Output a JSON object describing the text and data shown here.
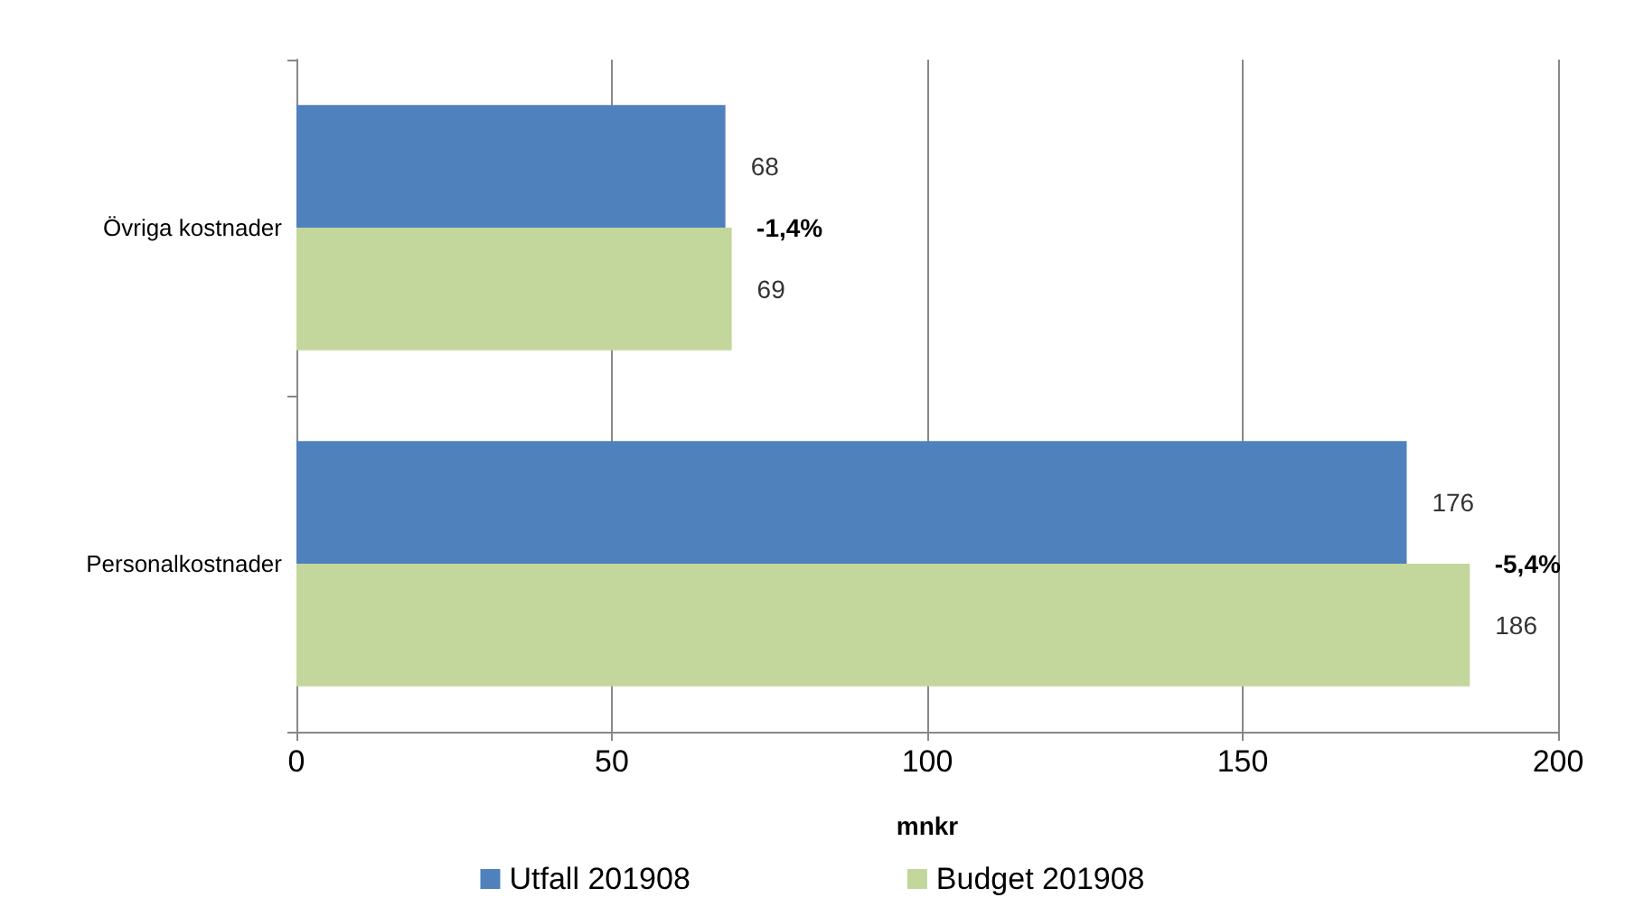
{
  "chart_data": {
    "type": "bar",
    "orientation": "horizontal",
    "xlabel": "mnkr",
    "categories": [
      "Övriga kostnader",
      "Personalkostnader"
    ],
    "series": [
      {
        "name": "Utfall 201908",
        "color": "#4f81bd",
        "values": [
          68,
          176
        ]
      },
      {
        "name": "Budget 201908",
        "color": "#c3d69b",
        "values": [
          69,
          186
        ]
      }
    ],
    "xlim": [
      0,
      200
    ],
    "xticks": [
      0,
      50,
      100,
      150,
      200
    ],
    "grid": "x",
    "legend": "bottom",
    "data_labels": true,
    "annotations": [
      "-1,4%",
      "-5,4%"
    ]
  }
}
